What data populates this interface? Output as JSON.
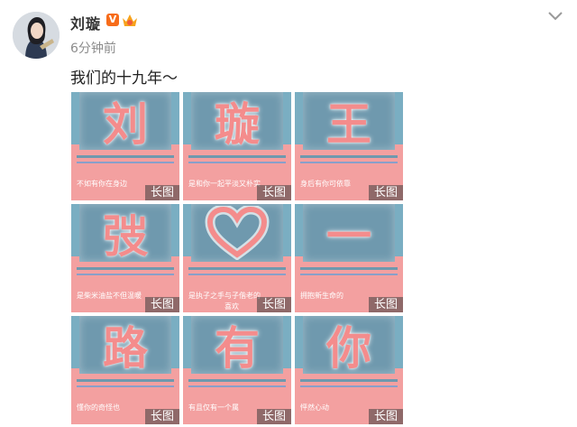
{
  "author": {
    "name": "刘璇",
    "verified_badge": "V",
    "time_ago": "6分钟前"
  },
  "post": {
    "text": "我们的十九年～"
  },
  "images": [
    {
      "char": "刘",
      "caption": "不如有你在身边",
      "badge": "长图",
      "icon": ""
    },
    {
      "char": "璇",
      "caption": "是和你一起平淡又朴实的生活",
      "badge": "长图",
      "icon": ""
    },
    {
      "char": "王",
      "caption": "身后有你可依靠",
      "badge": "长图",
      "icon": ""
    },
    {
      "char": "弢",
      "caption": "是柴米油盐不但温暖",
      "badge": "长图",
      "icon": ""
    },
    {
      "char": "",
      "caption": "是执子之手与子偕老的",
      "caption2": "喜欢",
      "badge": "长图",
      "icon": "heart-icon"
    },
    {
      "char": "一",
      "caption": "拥抱新生命的",
      "badge": "长图",
      "icon": ""
    },
    {
      "char": "路",
      "caption": "懂你的奇怪也",
      "badge": "长图",
      "icon": ""
    },
    {
      "char": "有",
      "caption": "有且仅有一个属",
      "badge": "长图",
      "icon": ""
    },
    {
      "char": "你",
      "caption": "怦然心动",
      "badge": "长图",
      "icon": ""
    }
  ],
  "colors": {
    "tile_blue": "#7aaec2",
    "tile_pink": "#f3a0a0",
    "verified_orange": "#f76c1a"
  }
}
